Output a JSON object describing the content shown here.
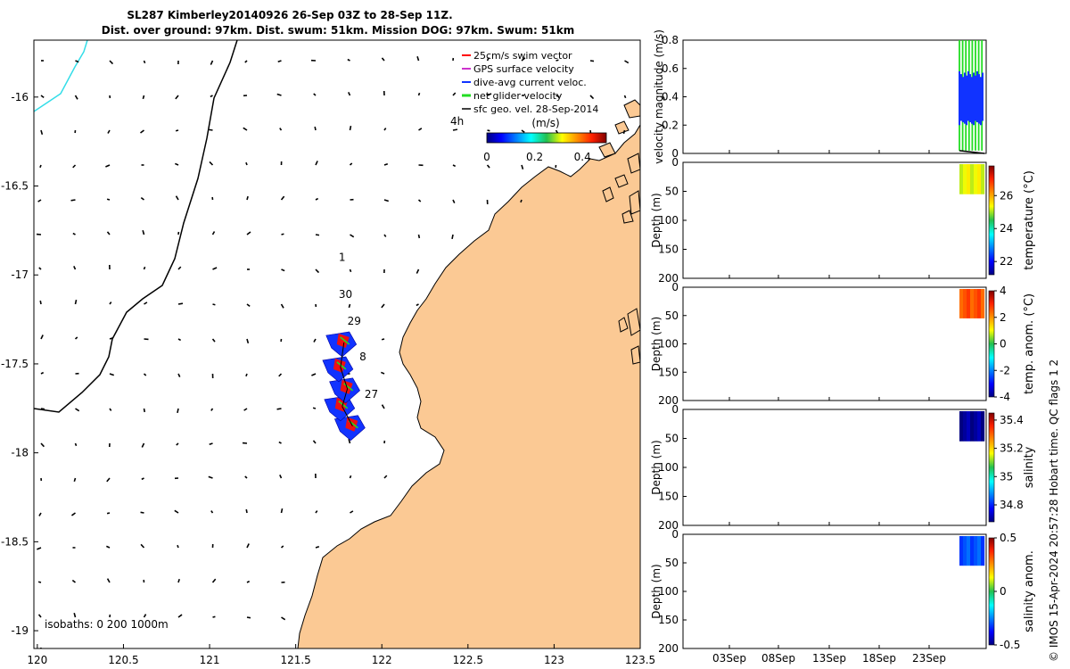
{
  "figure": {
    "title_line1": "SL287 Kimberley20140926 26-Sep 03Z to 28-Sep 11Z.",
    "title_line2": "Dist. over ground: 97km. Dist. swum: 51km. Mission DOG: 97km. Swum: 51km",
    "credit": "© IMOS 15-Apr-2024 20:57:28 Hobart time. QC flags 1  2"
  },
  "chart_data": [
    {
      "type": "scatter",
      "name": "map",
      "x_ticks": [
        "120",
        "120.5",
        "121",
        "121.5",
        "122",
        "122.5",
        "123",
        "123.5"
      ],
      "y_ticks": [
        "-16",
        "-16.5",
        "-17",
        "-17.5",
        "-18",
        "-18.5",
        "-19"
      ],
      "xlim": [
        119.98,
        123.5
      ],
      "ylim": [
        -19.1,
        -15.68
      ],
      "legend": {
        "position": "top-right",
        "entries": [
          {
            "label": "25cm/s swim vector",
            "color": "#ff0000"
          },
          {
            "label": "GPS surface velocity",
            "color": "#cc33cc"
          },
          {
            "label": "dive-avg current veloc.",
            "color": "#1133ff"
          },
          {
            "label": "net glider velocity",
            "color": "#22dd22"
          },
          {
            "label": "sfc geo. vel. 28-Sep-2014",
            "color": "#000000"
          }
        ],
        "time_label": "4h"
      },
      "colorbar": {
        "unit": "(m/s)",
        "ticks": [
          "0",
          "0.2",
          "0.4"
        ],
        "range": [
          0,
          0.5
        ]
      },
      "day_labels": [
        {
          "text": "1",
          "x": 121.75,
          "y": -16.92
        },
        {
          "text": "30",
          "x": 121.75,
          "y": -17.13
        },
        {
          "text": "29",
          "x": 121.8,
          "y": -17.28
        },
        {
          "text": "8",
          "x": 121.87,
          "y": -17.48
        },
        {
          "text": "27",
          "x": 121.9,
          "y": -17.69
        }
      ],
      "isobath_label": "isobaths: 0   200  1000m",
      "track": [
        [
          121.83,
          -17.85
        ],
        [
          121.77,
          -17.74
        ],
        [
          121.8,
          -17.64
        ],
        [
          121.76,
          -17.52
        ],
        [
          121.78,
          -17.38
        ]
      ]
    },
    {
      "type": "line",
      "name": "velocity-magnitude",
      "ylabel": "velocity magnitude (m/s)",
      "y_ticks": [
        "0",
        "0.2",
        "0.4",
        "0.6",
        "0.8"
      ],
      "ylim": [
        0,
        0.8
      ],
      "x_ticks": [
        "03Sep",
        "08Sep",
        "13Sep",
        "18Sep",
        "23Sep"
      ],
      "net_range": [
        0.02,
        0.8
      ],
      "current_range": [
        0.2,
        0.58
      ],
      "gps_level": 0.02
    },
    {
      "type": "heatmap",
      "name": "temperature",
      "ylabel": "Depth (m)",
      "y_ticks": [
        "0",
        "50",
        "100",
        "150",
        "200"
      ],
      "ylim": [
        200,
        0
      ],
      "x_ticks": [
        "03Sep",
        "08Sep",
        "13Sep",
        "18Sep",
        "23Sep"
      ],
      "colorbar_label": "temperature (°C)",
      "colorbar_ticks": [
        "22",
        "24",
        "26"
      ],
      "colorbar_range": [
        21.2,
        27.8
      ],
      "data_depth_max": 55,
      "field_value": 25.3
    },
    {
      "type": "heatmap",
      "name": "temperature-anomaly",
      "ylabel": "Depth (m)",
      "y_ticks": [
        "0",
        "50",
        "100",
        "150",
        "200"
      ],
      "ylim": [
        200,
        0
      ],
      "x_ticks": [
        "03Sep",
        "08Sep",
        "13Sep",
        "18Sep",
        "23Sep"
      ],
      "colorbar_label": "temp. anom. (°C)",
      "colorbar_ticks": [
        "-4",
        "-2",
        "0",
        "2",
        "4"
      ],
      "colorbar_range": [
        -4,
        4
      ],
      "data_depth_max": 55,
      "field_value": 2.6
    },
    {
      "type": "heatmap",
      "name": "salinity",
      "ylabel": "Depth (m)",
      "y_ticks": [
        "0",
        "50",
        "100",
        "150",
        "200"
      ],
      "ylim": [
        200,
        0
      ],
      "x_ticks": [
        "03Sep",
        "08Sep",
        "13Sep",
        "18Sep",
        "23Sep"
      ],
      "colorbar_label": "salinity",
      "colorbar_ticks": [
        "34.8",
        "35",
        "35.2",
        "35.4"
      ],
      "colorbar_range": [
        34.68,
        35.45
      ],
      "data_depth_max": 55,
      "field_value": 34.7
    },
    {
      "type": "heatmap",
      "name": "salinity-anomaly",
      "ylabel": "Depth (m)",
      "y_ticks": [
        "0",
        "50",
        "100",
        "150",
        "200"
      ],
      "ylim": [
        200,
        0
      ],
      "x_ticks": [
        "03Sep",
        "08Sep",
        "13Sep",
        "18Sep",
        "23Sep"
      ],
      "colorbar_label": "salinity anom.",
      "colorbar_ticks": [
        "-0.5",
        "0",
        "0.5"
      ],
      "colorbar_range": [
        -0.5,
        0.5
      ],
      "data_depth_max": 55,
      "field_value": -0.3
    }
  ]
}
